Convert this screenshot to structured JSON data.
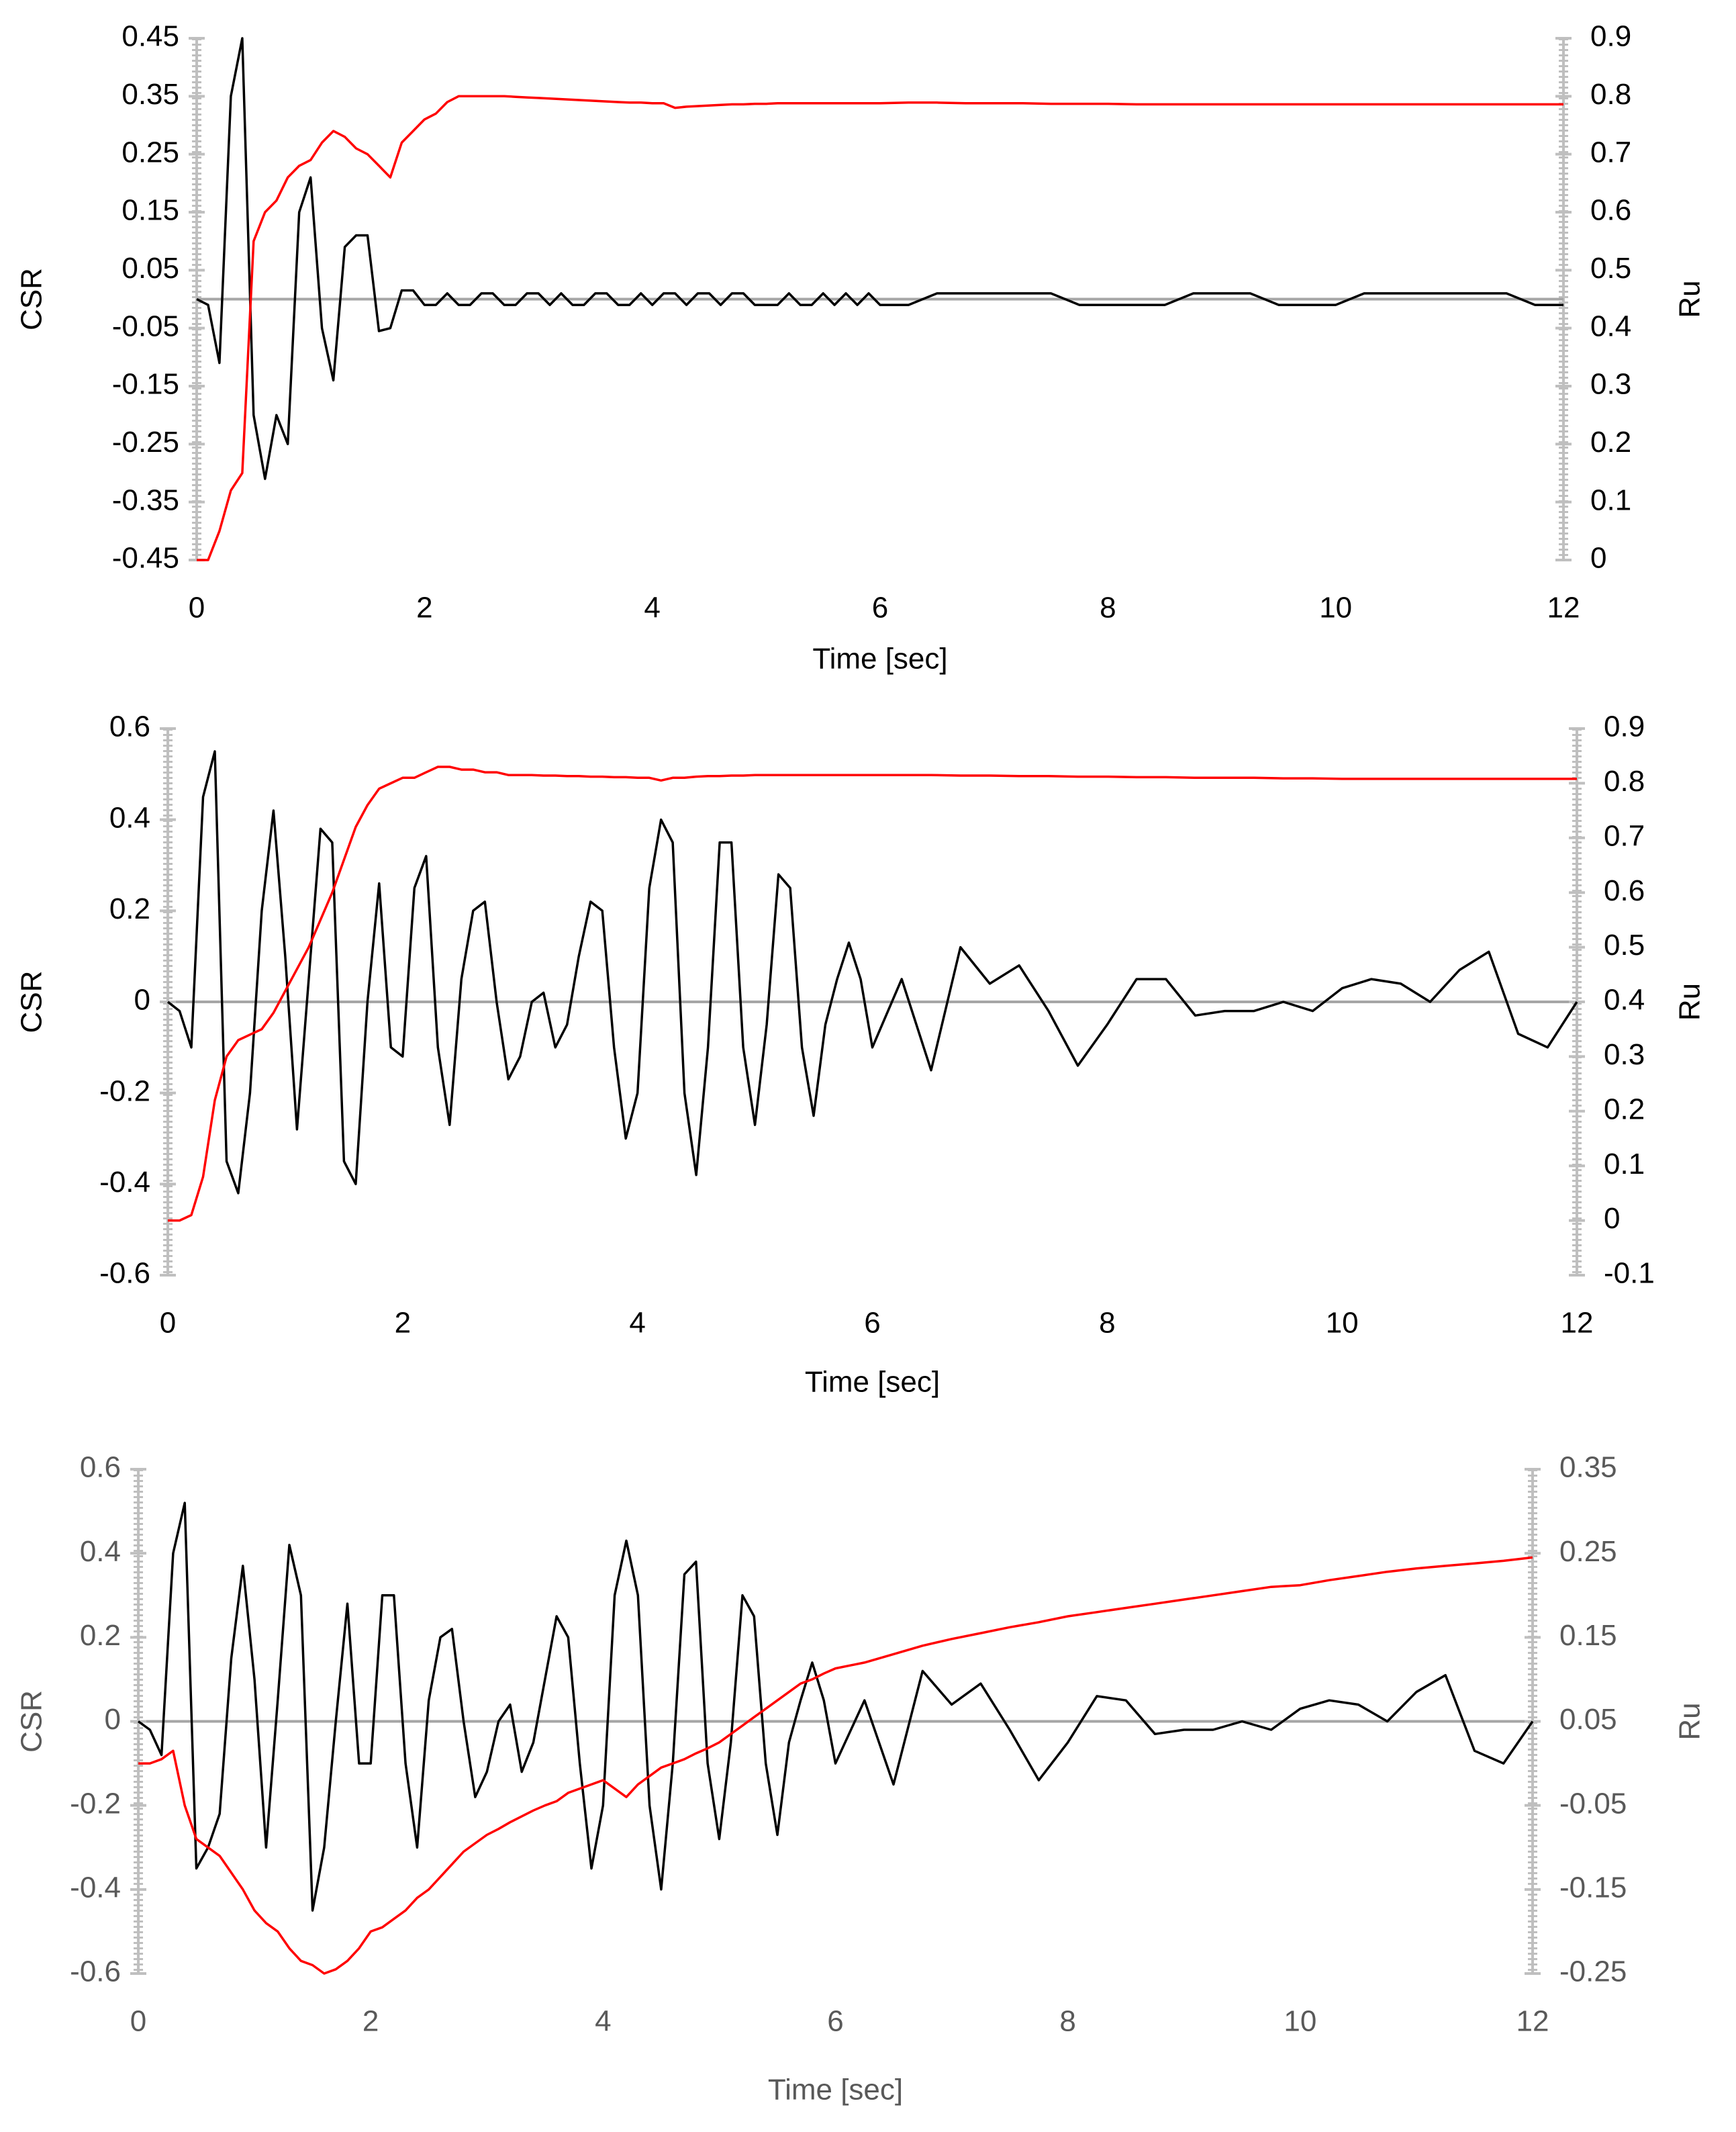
{
  "chart_data": [
    {
      "type": "line",
      "xlabel": "Time [sec]",
      "ylabel": "CSR",
      "y2label": "Ru",
      "xlim": [
        0,
        12
      ],
      "xticks": [
        0,
        2,
        4,
        6,
        8,
        10,
        12
      ],
      "ylim": [
        -0.45,
        0.45
      ],
      "yticks": [
        -0.45,
        -0.35,
        -0.25,
        -0.15,
        -0.05,
        0.05,
        0.15,
        0.25,
        0.35,
        0.45
      ],
      "y2lim": [
        0,
        0.9
      ],
      "y2ticks": [
        0,
        0.1,
        0.2,
        0.3,
        0.4,
        0.5,
        0.6,
        0.7,
        0.8,
        0.9
      ],
      "x": [
        0,
        0.1,
        0.2,
        0.3,
        0.4,
        0.5,
        0.6,
        0.7,
        0.8,
        0.9,
        1.0,
        1.1,
        1.2,
        1.3,
        1.4,
        1.5,
        1.6,
        1.7,
        1.8,
        1.9,
        2.0,
        2.1,
        2.2,
        2.3,
        2.4,
        2.5,
        2.6,
        2.7,
        2.8,
        2.9,
        3.0,
        3.1,
        3.2,
        3.3,
        3.4,
        3.5,
        3.6,
        3.7,
        3.8,
        3.9,
        4.0,
        4.1,
        4.2,
        4.3,
        4.4,
        4.5,
        4.6,
        4.7,
        4.8,
        4.9,
        5.0,
        5.1,
        5.2,
        5.3,
        5.4,
        5.5,
        5.6,
        5.7,
        5.8,
        5.9,
        6.0,
        6.25,
        6.5,
        6.75,
        7.0,
        7.25,
        7.5,
        7.75,
        8.0,
        8.25,
        8.5,
        8.75,
        9.0,
        9.25,
        9.5,
        9.75,
        10.0,
        10.25,
        10.5,
        10.75,
        11.0,
        11.25,
        11.5,
        11.75,
        12.0
      ],
      "series": [
        {
          "color": "#000000",
          "values": [
            0,
            -0.01,
            -0.11,
            0.35,
            0.45,
            -0.2,
            -0.31,
            -0.2,
            -0.25,
            0.15,
            0.21,
            -0.05,
            -0.14,
            0.09,
            0.11,
            0.11,
            -0.055,
            -0.05,
            0.015,
            0.015,
            -0.01,
            -0.01,
            0.01,
            -0.01,
            -0.01,
            0.01,
            0.01,
            -0.01,
            -0.01,
            0.01,
            0.01,
            -0.01,
            0.01,
            -0.01,
            -0.01,
            0.01,
            0.01,
            -0.01,
            -0.01,
            0.01,
            -0.01,
            0.01,
            0.01,
            -0.01,
            0.01,
            0.01,
            -0.01,
            0.01,
            0.01,
            -0.01,
            -0.01,
            -0.01,
            0.01,
            -0.01,
            -0.01,
            0.01,
            -0.01,
            0.01,
            -0.01,
            0.01,
            -0.01,
            -0.01,
            0.01,
            0.01,
            0.01,
            0.01,
            0.01,
            -0.01,
            -0.01,
            -0.01,
            -0.01,
            0.01,
            0.01,
            0.01,
            -0.01,
            -0.01,
            -0.01,
            0.01,
            0.01,
            0.01,
            0.01,
            0.01,
            0.01,
            -0.01,
            -0.01
          ]
        },
        {
          "color": "#ff0000",
          "axis": "y2",
          "values": [
            0,
            0,
            0.05,
            0.12,
            0.15,
            0.55,
            0.6,
            0.62,
            0.66,
            0.68,
            0.69,
            0.72,
            0.74,
            0.73,
            0.71,
            0.7,
            0.68,
            0.66,
            0.72,
            0.74,
            0.76,
            0.77,
            0.79,
            0.8,
            0.8,
            0.8,
            0.8,
            0.8,
            0.799,
            0.798,
            0.797,
            0.796,
            0.795,
            0.794,
            0.793,
            0.792,
            0.791,
            0.79,
            0.789,
            0.789,
            0.788,
            0.788,
            0.78,
            0.782,
            0.783,
            0.784,
            0.785,
            0.786,
            0.786,
            0.787,
            0.787,
            0.788,
            0.788,
            0.788,
            0.788,
            0.788,
            0.788,
            0.788,
            0.788,
            0.788,
            0.788,
            0.789,
            0.789,
            0.788,
            0.788,
            0.788,
            0.787,
            0.787,
            0.787,
            0.786,
            0.786,
            0.786,
            0.786,
            0.786,
            0.786,
            0.786,
            0.786,
            0.786,
            0.786,
            0.786,
            0.786,
            0.786,
            0.786,
            0.786,
            0.786
          ]
        }
      ]
    },
    {
      "type": "line",
      "xlabel": "Time [sec]",
      "ylabel": "CSR",
      "y2label": "Ru",
      "xlim": [
        0,
        12
      ],
      "xticks": [
        0,
        2,
        4,
        6,
        8,
        10,
        12
      ],
      "ylim": [
        -0.6,
        0.6
      ],
      "yticks": [
        -0.6,
        -0.4,
        -0.2,
        0,
        0.2,
        0.4,
        0.6
      ],
      "y2lim": [
        -0.1,
        0.9
      ],
      "y2ticks": [
        -0.1,
        0,
        0.1,
        0.2,
        0.3,
        0.4,
        0.5,
        0.6,
        0.7,
        0.8,
        0.9
      ],
      "x": [
        0,
        0.1,
        0.2,
        0.3,
        0.4,
        0.5,
        0.6,
        0.7,
        0.8,
        0.9,
        1.0,
        1.1,
        1.2,
        1.3,
        1.4,
        1.5,
        1.6,
        1.7,
        1.8,
        1.9,
        2.0,
        2.1,
        2.2,
        2.3,
        2.4,
        2.5,
        2.6,
        2.7,
        2.8,
        2.9,
        3.0,
        3.1,
        3.2,
        3.3,
        3.4,
        3.5,
        3.6,
        3.7,
        3.8,
        3.9,
        4.0,
        4.1,
        4.2,
        4.3,
        4.4,
        4.5,
        4.6,
        4.7,
        4.8,
        4.9,
        5.0,
        5.1,
        5.2,
        5.3,
        5.4,
        5.5,
        5.6,
        5.7,
        5.8,
        5.9,
        6.0,
        6.25,
        6.5,
        6.75,
        7.0,
        7.25,
        7.5,
        7.75,
        8.0,
        8.25,
        8.5,
        8.75,
        9.0,
        9.25,
        9.5,
        9.75,
        10.0,
        10.25,
        10.5,
        10.75,
        11.0,
        11.25,
        11.5,
        11.75,
        12.0
      ],
      "series": [
        {
          "color": "#000000",
          "values": [
            0,
            -0.02,
            -0.1,
            0.45,
            0.55,
            -0.35,
            -0.42,
            -0.2,
            0.2,
            0.42,
            0.1,
            -0.28,
            0.05,
            0.38,
            0.35,
            -0.35,
            -0.4,
            0,
            0.26,
            -0.1,
            -0.12,
            0.25,
            0.32,
            -0.1,
            -0.27,
            0.05,
            0.2,
            0.22,
            0,
            -0.17,
            -0.12,
            0,
            0.02,
            -0.1,
            -0.05,
            0.1,
            0.22,
            0.2,
            -0.1,
            -0.3,
            -0.2,
            0.25,
            0.4,
            0.35,
            -0.2,
            -0.38,
            -0.1,
            0.35,
            0.35,
            -0.1,
            -0.27,
            -0.05,
            0.28,
            0.25,
            -0.1,
            -0.25,
            -0.05,
            0.05,
            0.13,
            0.05,
            -0.1,
            0.05,
            -0.15,
            0.12,
            0.04,
            0.08,
            -0.02,
            -0.14,
            -0.05,
            0.05,
            0.05,
            -0.03,
            -0.02,
            -0.02,
            0,
            -0.02,
            0.03,
            0.05,
            0.04,
            0,
            0.07,
            0.11,
            -0.07,
            -0.1,
            0
          ]
        },
        {
          "color": "#ff0000",
          "axis": "y2",
          "values": [
            0,
            0,
            0.01,
            0.08,
            0.22,
            0.3,
            0.33,
            0.34,
            0.35,
            0.38,
            0.42,
            0.46,
            0.5,
            0.55,
            0.6,
            0.66,
            0.72,
            0.76,
            0.79,
            0.8,
            0.81,
            0.81,
            0.82,
            0.83,
            0.83,
            0.825,
            0.825,
            0.82,
            0.82,
            0.815,
            0.815,
            0.815,
            0.814,
            0.814,
            0.813,
            0.813,
            0.812,
            0.812,
            0.811,
            0.811,
            0.81,
            0.81,
            0.805,
            0.81,
            0.81,
            0.812,
            0.813,
            0.813,
            0.814,
            0.814,
            0.815,
            0.815,
            0.815,
            0.815,
            0.815,
            0.815,
            0.815,
            0.815,
            0.815,
            0.815,
            0.815,
            0.815,
            0.815,
            0.814,
            0.814,
            0.813,
            0.813,
            0.812,
            0.812,
            0.811,
            0.811,
            0.81,
            0.81,
            0.81,
            0.809,
            0.809,
            0.808,
            0.808,
            0.808,
            0.808,
            0.808,
            0.808,
            0.808,
            0.808,
            0.808
          ]
        }
      ]
    },
    {
      "type": "line",
      "xlabel": "Time [sec]",
      "ylabel": "CSR",
      "y2label": "Ru",
      "xlim": [
        0,
        12
      ],
      "xticks": [
        0,
        2,
        4,
        6,
        8,
        10,
        12
      ],
      "ylim": [
        -0.6,
        0.6
      ],
      "yticks": [
        -0.6,
        -0.4,
        -0.2,
        0,
        0.2,
        0.4,
        0.6
      ],
      "y2lim": [
        -0.25,
        0.35
      ],
      "y2ticks": [
        -0.25,
        -0.15,
        -0.05,
        0.05,
        0.15,
        0.25,
        0.35
      ],
      "x": [
        0,
        0.1,
        0.2,
        0.3,
        0.4,
        0.5,
        0.6,
        0.7,
        0.8,
        0.9,
        1.0,
        1.1,
        1.2,
        1.3,
        1.4,
        1.5,
        1.6,
        1.7,
        1.8,
        1.9,
        2.0,
        2.1,
        2.2,
        2.3,
        2.4,
        2.5,
        2.6,
        2.7,
        2.8,
        2.9,
        3.0,
        3.1,
        3.2,
        3.3,
        3.4,
        3.5,
        3.6,
        3.7,
        3.8,
        3.9,
        4.0,
        4.1,
        4.2,
        4.3,
        4.4,
        4.5,
        4.6,
        4.7,
        4.8,
        4.9,
        5.0,
        5.1,
        5.2,
        5.3,
        5.4,
        5.5,
        5.6,
        5.7,
        5.8,
        5.9,
        6.0,
        6.25,
        6.5,
        6.75,
        7.0,
        7.25,
        7.5,
        7.75,
        8.0,
        8.25,
        8.5,
        8.75,
        9.0,
        9.25,
        9.5,
        9.75,
        10.0,
        10.25,
        10.5,
        10.75,
        11.0,
        11.25,
        11.5,
        11.75,
        12.0
      ],
      "series": [
        {
          "color": "#000000",
          "values": [
            0,
            -0.02,
            -0.08,
            0.4,
            0.52,
            -0.35,
            -0.3,
            -0.22,
            0.15,
            0.37,
            0.1,
            -0.3,
            0.05,
            0.42,
            0.3,
            -0.45,
            -0.3,
            0,
            0.28,
            -0.1,
            -0.1,
            0.3,
            0.3,
            -0.1,
            -0.3,
            0.05,
            0.2,
            0.22,
            0,
            -0.18,
            -0.12,
            0,
            0.04,
            -0.12,
            -0.05,
            0.1,
            0.25,
            0.2,
            -0.1,
            -0.35,
            -0.2,
            0.3,
            0.43,
            0.3,
            -0.2,
            -0.4,
            -0.1,
            0.35,
            0.38,
            -0.1,
            -0.28,
            -0.05,
            0.3,
            0.25,
            -0.1,
            -0.27,
            -0.05,
            0.05,
            0.14,
            0.05,
            -0.1,
            0.05,
            -0.15,
            0.12,
            0.04,
            0.09,
            -0.02,
            -0.14,
            -0.05,
            0.06,
            0.05,
            -0.03,
            -0.02,
            -0.02,
            0,
            -0.02,
            0.03,
            0.05,
            0.04,
            0,
            0.07,
            0.11,
            -0.07,
            -0.1,
            0
          ]
        },
        {
          "color": "#ff0000",
          "axis": "y2",
          "values": [
            0,
            0,
            0.005,
            0.015,
            -0.05,
            -0.09,
            -0.1,
            -0.11,
            -0.13,
            -0.15,
            -0.175,
            -0.19,
            -0.2,
            -0.22,
            -0.235,
            -0.24,
            -0.25,
            -0.245,
            -0.235,
            -0.22,
            -0.2,
            -0.195,
            -0.185,
            -0.175,
            -0.16,
            -0.15,
            -0.135,
            -0.12,
            -0.105,
            -0.095,
            -0.085,
            -0.078,
            -0.07,
            -0.063,
            -0.056,
            -0.05,
            -0.045,
            -0.035,
            -0.03,
            -0.025,
            -0.02,
            -0.03,
            -0.04,
            -0.025,
            -0.015,
            -0.005,
            0,
            0.005,
            0.012,
            0.018,
            0.025,
            0.035,
            0.045,
            0.055,
            0.065,
            0.075,
            0.085,
            0.095,
            0.1,
            0.107,
            0.113,
            0.12,
            0.13,
            0.14,
            0.148,
            0.155,
            0.162,
            0.168,
            0.175,
            0.18,
            0.185,
            0.19,
            0.195,
            0.2,
            0.205,
            0.21,
            0.212,
            0.218,
            0.223,
            0.228,
            0.232,
            0.235,
            0.238,
            0.241,
            0.245
          ]
        }
      ]
    }
  ]
}
